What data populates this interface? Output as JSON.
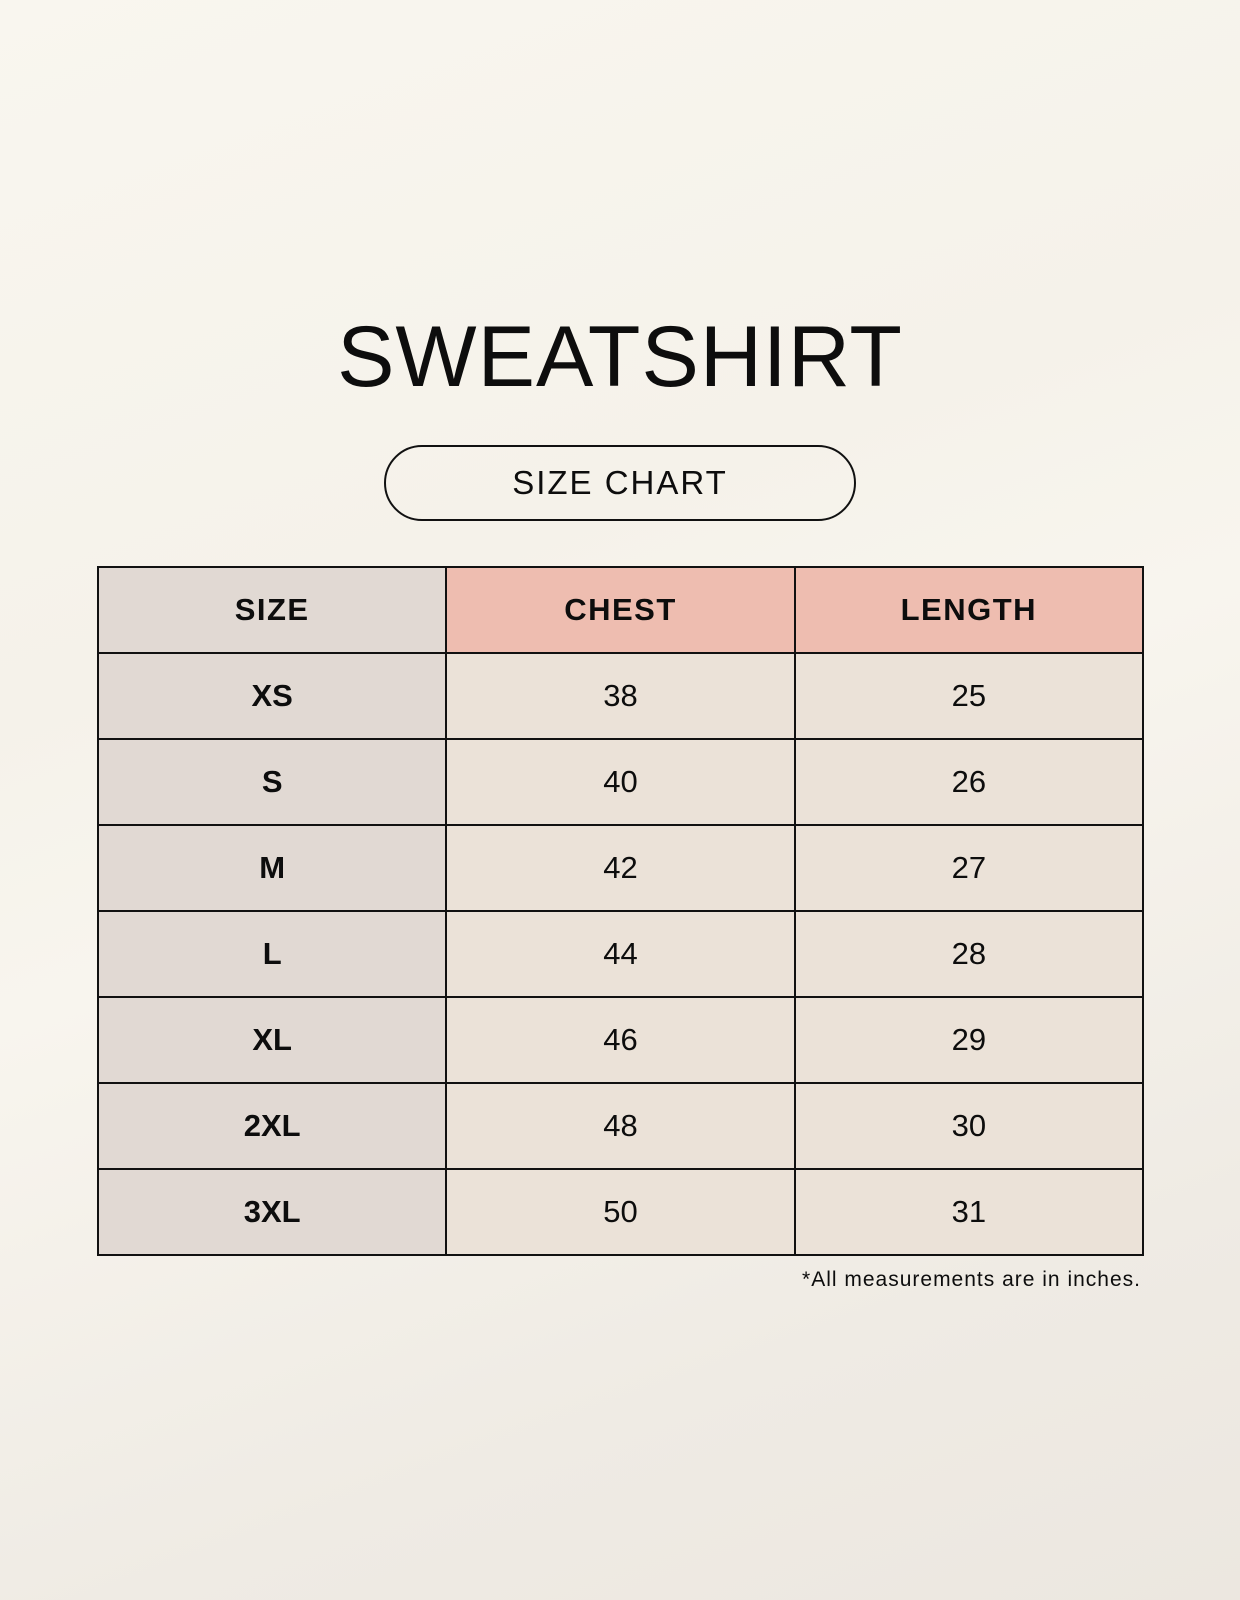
{
  "title": "SWEATSHIRT",
  "subtitle": "SIZE CHART",
  "colors": {
    "size_column": "#e1d9d3",
    "header_accent": "#eebdb0",
    "cell": "#ebe2d8"
  },
  "table": {
    "headers": [
      "SIZE",
      "CHEST",
      "LENGTH"
    ],
    "rows": [
      [
        "XS",
        "38",
        "25"
      ],
      [
        "S",
        "40",
        "26"
      ],
      [
        "M",
        "42",
        "27"
      ],
      [
        "L",
        "44",
        "28"
      ],
      [
        "XL",
        "46",
        "29"
      ],
      [
        "2XL",
        "48",
        "30"
      ],
      [
        "3XL",
        "50",
        "31"
      ]
    ]
  },
  "footnote": "*All measurements are in inches."
}
